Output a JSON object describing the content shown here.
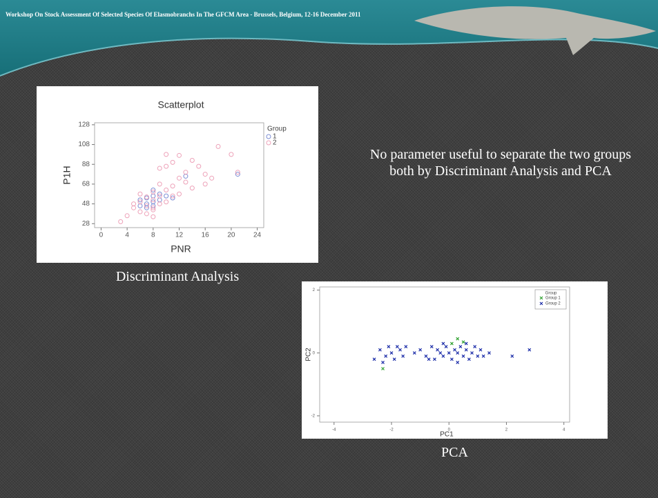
{
  "header": {
    "title": "Workshop On Stock Assessment Of Selected Species Of Elasmobranchs In The GFCM Area - Brussels, Belgium, 12-16 December 2011"
  },
  "note": "No parameter useful to separate the two groups both by Discriminant Analysis and PCA",
  "chart_data": [
    {
      "type": "scatter",
      "title": "Scatterplot",
      "x_label": "PNR",
      "y_label": "P1H",
      "legend_title": "Group",
      "caption": "Discriminant Analysis",
      "marker": "circle",
      "xlim": [
        -1,
        25
      ],
      "ylim": [
        24,
        130
      ],
      "xticks": [
        0,
        4,
        8,
        12,
        16,
        20,
        24
      ],
      "yticks": [
        28,
        48,
        68,
        88,
        108,
        128
      ],
      "series": [
        {
          "name": "1",
          "color": "#5a6fc8",
          "x": [
            6,
            7,
            7,
            8,
            8,
            8,
            9,
            9,
            7,
            10,
            6,
            8,
            13,
            21,
            11
          ],
          "values": [
            52,
            54,
            48,
            62,
            56,
            50,
            58,
            52,
            44,
            56,
            46,
            46,
            76,
            78,
            54
          ]
        },
        {
          "name": "2",
          "color": "#e88aa6",
          "x": [
            4,
            5,
            6,
            6,
            7,
            7,
            7,
            8,
            8,
            8,
            8,
            9,
            9,
            9,
            9,
            10,
            10,
            10,
            10,
            11,
            11,
            11,
            12,
            12,
            12,
            13,
            13,
            14,
            14,
            15,
            16,
            16,
            17,
            18,
            20,
            21,
            3,
            6,
            8,
            5
          ],
          "values": [
            36,
            44,
            50,
            40,
            55,
            46,
            38,
            52,
            60,
            44,
            35,
            48,
            56,
            68,
            84,
            62,
            50,
            86,
            98,
            66,
            56,
            90,
            74,
            58,
            97,
            80,
            70,
            64,
            92,
            86,
            68,
            78,
            74,
            106,
            98,
            80,
            30,
            58,
            42,
            48
          ]
        }
      ]
    },
    {
      "type": "scatter",
      "x_label": "PC1",
      "y_label": "PC2",
      "legend_title": "Group",
      "caption": "PCA",
      "marker": "cross",
      "xlim": [
        -4.5,
        4.2
      ],
      "ylim": [
        -2.2,
        2.1
      ],
      "xticks": [
        -4,
        -2,
        0,
        2,
        4
      ],
      "yticks": [
        -2,
        0,
        2
      ],
      "series": [
        {
          "name": "Group 1",
          "color": "#2ea02e",
          "x": [
            0.3,
            0.5,
            -2.3,
            0.1
          ],
          "values": [
            0.45,
            0.35,
            -0.5,
            0.3
          ]
        },
        {
          "name": "Group 2",
          "color": "#1a2ba8",
          "x": [
            -2.6,
            -2.4,
            -2.2,
            -2.1,
            -2.0,
            -1.9,
            -1.8,
            -1.7,
            -1.6,
            -1.5,
            -1.2,
            -1.0,
            -0.8,
            -0.6,
            -0.5,
            -0.4,
            -0.3,
            -0.2,
            -0.1,
            0,
            0.1,
            0.2,
            0.3,
            0.4,
            0.5,
            0.6,
            0.7,
            0.8,
            0.9,
            1.0,
            1.1,
            1.2,
            1.4,
            2.2,
            2.8,
            -0.2,
            0.3,
            0.6,
            -0.7,
            -2.3
          ],
          "values": [
            -0.2,
            0.1,
            -0.1,
            0.2,
            0.0,
            -0.2,
            0.2,
            0.1,
            -0.1,
            0.2,
            0.0,
            0.1,
            -0.1,
            0.2,
            -0.2,
            0.1,
            0.0,
            -0.1,
            0.2,
            0.0,
            -0.2,
            0.1,
            0.0,
            0.2,
            -0.1,
            0.1,
            -0.2,
            0.0,
            0.2,
            -0.1,
            0.1,
            -0.1,
            0.0,
            -0.1,
            0.1,
            0.3,
            -0.3,
            0.3,
            -0.2,
            -0.3
          ]
        }
      ]
    }
  ]
}
